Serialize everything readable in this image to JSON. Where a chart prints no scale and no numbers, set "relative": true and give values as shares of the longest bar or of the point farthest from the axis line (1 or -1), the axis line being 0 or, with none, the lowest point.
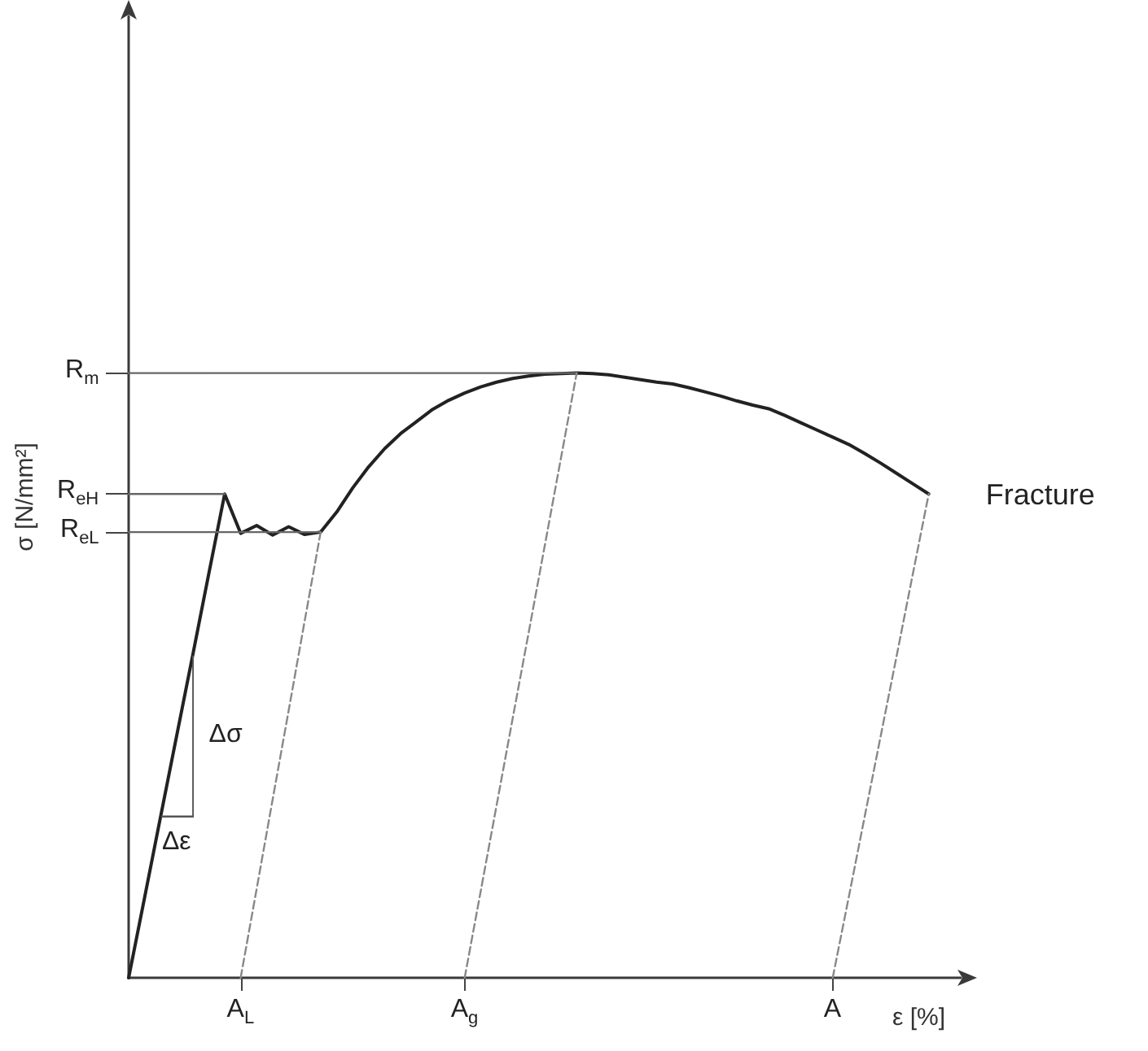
{
  "chart_data": {
    "type": "line",
    "relative": true,
    "xlabel": "ε [%]",
    "ylabel": "σ [N/mm²]",
    "grid": false,
    "marker": "none",
    "categories": [
      null,
      null,
      null,
      null,
      null,
      null,
      null,
      "A$_{L}$",
      null,
      null,
      null,
      null,
      null,
      null,
      null,
      null,
      null,
      null,
      null,
      null,
      null,
      "A$_{g}$",
      null,
      null,
      null,
      null,
      null,
      null,
      null,
      null,
      null,
      null,
      null,
      null,
      null,
      null,
      null,
      null,
      null,
      null,
      null,
      null,
      null,
      null,
      "A",
      null,
      null,
      null,
      null,
      null,
      null,
      null,
      null
    ],
    "series": [
      {
        "color": "#222222",
        "line_style": "solid",
        "values": [
          0,
          0.133,
          0.267,
          0.4,
          0.533,
          0.667,
          0.8,
          0.735,
          0.748,
          0.732,
          0.746,
          0.733,
          0.737,
          0.77,
          0.81,
          0.845,
          0.875,
          0.9,
          0.92,
          0.94,
          0.955,
          0.967,
          0.977,
          0.985,
          0.991,
          0.995,
          0.998,
          0.999,
          1,
          0.999,
          0.997,
          0.993,
          0.989,
          0.985,
          0.982,
          0.976,
          0.969,
          0.962,
          0.954,
          0.947,
          0.941,
          0.93,
          0.918,
          0.906,
          0.894,
          0.882,
          0.867,
          0.851,
          0.834,
          0.817,
          0.8,
          null,
          null
        ]
      },
      {
        "color": "#666666",
        "line_style": "solid",
        "values": [
          1,
          1,
          1,
          1,
          1,
          1,
          1,
          1,
          1,
          1,
          1,
          1,
          1,
          1,
          1,
          1,
          1,
          1,
          1,
          1,
          1,
          1,
          1,
          1,
          1,
          1,
          1,
          1,
          1,
          null,
          null,
          null,
          null,
          null,
          null,
          null,
          null,
          null,
          null,
          null,
          null,
          null,
          null,
          null,
          null,
          null,
          null,
          null,
          null,
          null,
          null,
          null,
          null
        ]
      },
      {
        "color": "#666666",
        "line_style": "solid",
        "values": [
          0.8,
          0.8,
          0.8,
          0.8,
          0.8,
          0.8,
          0.8,
          null,
          null,
          null,
          null,
          null,
          null,
          null,
          null,
          null,
          null,
          null,
          null,
          null,
          null,
          null,
          null,
          null,
          null,
          null,
          null,
          null,
          null,
          null,
          null,
          null,
          null,
          null,
          null,
          null,
          null,
          null,
          null,
          null,
          null,
          null,
          null,
          null,
          null,
          null,
          null,
          null,
          null,
          null,
          null,
          null,
          null
        ]
      },
      {
        "color": "#666666",
        "line_style": "solid",
        "values": [
          0.737,
          0.737,
          0.737,
          0.737,
          0.737,
          0.737,
          0.737,
          0.737,
          0.737,
          0.737,
          0.737,
          0.737,
          0.737,
          null,
          null,
          null,
          null,
          null,
          null,
          null,
          null,
          null,
          null,
          null,
          null,
          null,
          null,
          null,
          null,
          null,
          null,
          null,
          null,
          null,
          null,
          null,
          null,
          null,
          null,
          null,
          null,
          null,
          null,
          null,
          null,
          null,
          null,
          null,
          null,
          null,
          null,
          null,
          null
        ]
      },
      {
        "color": "#888888",
        "line_style": "dashed",
        "values": [
          null,
          null,
          null,
          null,
          null,
          null,
          null,
          0,
          0.147,
          0.295,
          0.442,
          0.59,
          0.737,
          null,
          null,
          null,
          null,
          null,
          null,
          null,
          null,
          null,
          null,
          null,
          null,
          null,
          null,
          null,
          null,
          null,
          null,
          null,
          null,
          null,
          null,
          null,
          null,
          null,
          null,
          null,
          null,
          null,
          null,
          null,
          null,
          null,
          null,
          null,
          null,
          null,
          null,
          null,
          null
        ]
      },
      {
        "color": "#888888",
        "line_style": "dashed",
        "values": [
          null,
          null,
          null,
          null,
          null,
          null,
          null,
          null,
          null,
          null,
          null,
          null,
          null,
          null,
          null,
          null,
          null,
          null,
          null,
          null,
          null,
          0,
          0.143,
          0.286,
          0.429,
          0.571,
          0.714,
          0.857,
          1,
          null,
          null,
          null,
          null,
          null,
          null,
          null,
          null,
          null,
          null,
          null,
          null,
          null,
          null,
          null,
          null,
          null,
          null,
          null,
          null,
          null,
          null,
          null,
          null
        ]
      },
      {
        "color": "#888888",
        "line_style": "dashed",
        "values": [
          null,
          null,
          null,
          null,
          null,
          null,
          null,
          null,
          null,
          null,
          null,
          null,
          null,
          null,
          null,
          null,
          null,
          null,
          null,
          null,
          null,
          null,
          null,
          null,
          null,
          null,
          null,
          null,
          null,
          null,
          null,
          null,
          null,
          null,
          null,
          null,
          null,
          null,
          null,
          null,
          null,
          null,
          null,
          null,
          0,
          0.133,
          0.267,
          0.4,
          0.533,
          0.667,
          0.8,
          null,
          null
        ]
      }
    ],
    "annotations": [
      "R$_{m}$",
      "R$_{eH}$",
      "R$_{eL}$",
      "Δσ",
      "Δε",
      "Fracture"
    ]
  }
}
